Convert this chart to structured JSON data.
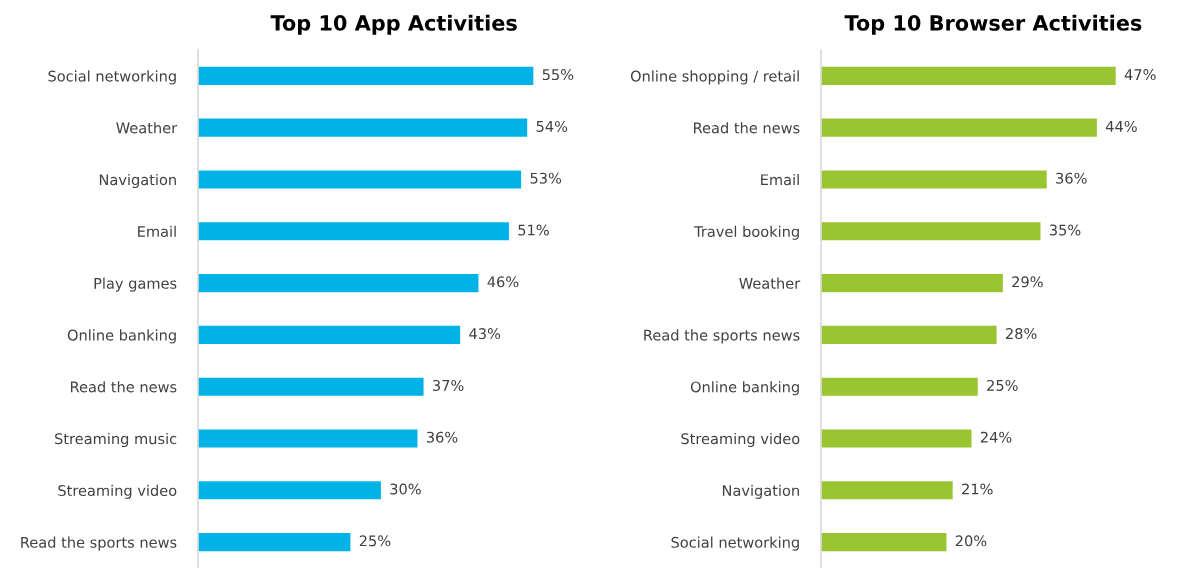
{
  "chart_data": [
    {
      "type": "bar",
      "orientation": "horizontal",
      "title": "Top 10 App Activities",
      "categories": [
        "Social networking",
        "Weather",
        "Navigation",
        "Email",
        "Play games",
        "Online banking",
        "Read the news",
        "Streaming music",
        "Streaming video",
        "Read the sports news"
      ],
      "values": [
        55,
        54,
        53,
        51,
        46,
        43,
        37,
        36,
        30,
        25
      ],
      "value_labels": [
        "55%",
        "54%",
        "53%",
        "51%",
        "46%",
        "43%",
        "37%",
        "36%",
        "30%",
        "25%"
      ],
      "color": "#00b2e5",
      "grid": false,
      "legend": false
    },
    {
      "type": "bar",
      "orientation": "horizontal",
      "title": "Top 10 Browser Activities",
      "categories": [
        "Online shopping / retail",
        "Read the news",
        "Email",
        "Travel booking",
        "Weather",
        "Read the sports news",
        "Online banking",
        "Streaming video",
        "Navigation",
        "Social networking"
      ],
      "values": [
        47,
        44,
        36,
        35,
        29,
        28,
        25,
        24,
        21,
        20
      ],
      "value_labels": [
        "47%",
        "44%",
        "36%",
        "35%",
        "29%",
        "28%",
        "25%",
        "24%",
        "21%",
        "20%"
      ],
      "color": "#99c530",
      "grid": false,
      "legend": false
    }
  ]
}
